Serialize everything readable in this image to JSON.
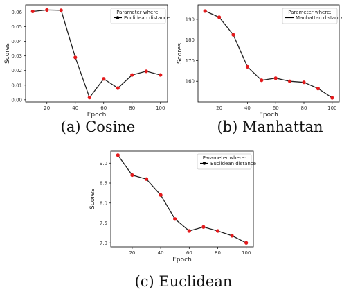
{
  "chart_data": [
    {
      "type": "line",
      "caption": "(a) Cosine",
      "xlabel": "Epoch",
      "ylabel": "Scores",
      "xlim": [
        5,
        105
      ],
      "ylim": [
        -0.0015,
        0.065
      ],
      "xticks": [
        20,
        40,
        60,
        80,
        100
      ],
      "yticks": [
        0.0,
        0.01,
        0.02,
        0.03,
        0.04,
        0.05,
        0.06
      ],
      "ytick_labels": [
        "0.00",
        "0.01",
        "0.02",
        "0.03",
        "0.04",
        "0.05",
        "0.06"
      ],
      "legend": {
        "title": "Parameter where:",
        "placement": "top-right",
        "marker": true
      },
      "series": [
        {
          "name": "Euclidean distance",
          "x": [
            10,
            20,
            30,
            40,
            50,
            60,
            70,
            80,
            90,
            100
          ],
          "y": [
            0.0605,
            0.0615,
            0.0613,
            0.029,
            0.0015,
            0.0143,
            0.008,
            0.017,
            0.0195,
            0.017
          ]
        }
      ],
      "colors": {
        "line": "#222222",
        "marker": "#e41a1c"
      }
    },
    {
      "type": "line",
      "caption": "(b) Manhattan",
      "xlabel": "Epoch",
      "ylabel": "Scores",
      "xlim": [
        5,
        105
      ],
      "ylim": [
        150,
        197
      ],
      "xticks": [
        20,
        40,
        60,
        80,
        100
      ],
      "yticks": [
        160,
        170,
        180,
        190
      ],
      "ytick_labels": [
        "160",
        "170",
        "180",
        "190"
      ],
      "legend": {
        "title": "Parameter where:",
        "placement": "top-right",
        "marker": false
      },
      "series": [
        {
          "name": "Manhattan distance",
          "x": [
            10,
            20,
            30,
            40,
            50,
            60,
            70,
            80,
            90,
            100
          ],
          "y": [
            194,
            191,
            182.5,
            167,
            160.5,
            161.5,
            160,
            159.5,
            156.5,
            152
          ]
        }
      ],
      "colors": {
        "line": "#222222",
        "marker": "#e41a1c"
      }
    },
    {
      "type": "line",
      "caption": "(c) Euclidean",
      "xlabel": "Epoch",
      "ylabel": "Scores",
      "xlim": [
        5,
        105
      ],
      "ylim": [
        6.9,
        9.3
      ],
      "xticks": [
        20,
        40,
        60,
        80,
        100
      ],
      "yticks": [
        7.0,
        7.5,
        8.0,
        8.5,
        9.0
      ],
      "ytick_labels": [
        "7.0",
        "7.5",
        "8.0",
        "8.5",
        "9.0"
      ],
      "legend": {
        "title": "Parameter where:",
        "placement": "top-right",
        "marker": true
      },
      "series": [
        {
          "name": "Euclidean distance",
          "x": [
            10,
            20,
            30,
            40,
            50,
            60,
            70,
            80,
            90,
            100
          ],
          "y": [
            9.2,
            8.7,
            8.6,
            8.2,
            7.6,
            7.3,
            7.4,
            7.3,
            7.18,
            7.0
          ]
        }
      ],
      "colors": {
        "line": "#222222",
        "marker": "#e41a1c"
      }
    }
  ]
}
